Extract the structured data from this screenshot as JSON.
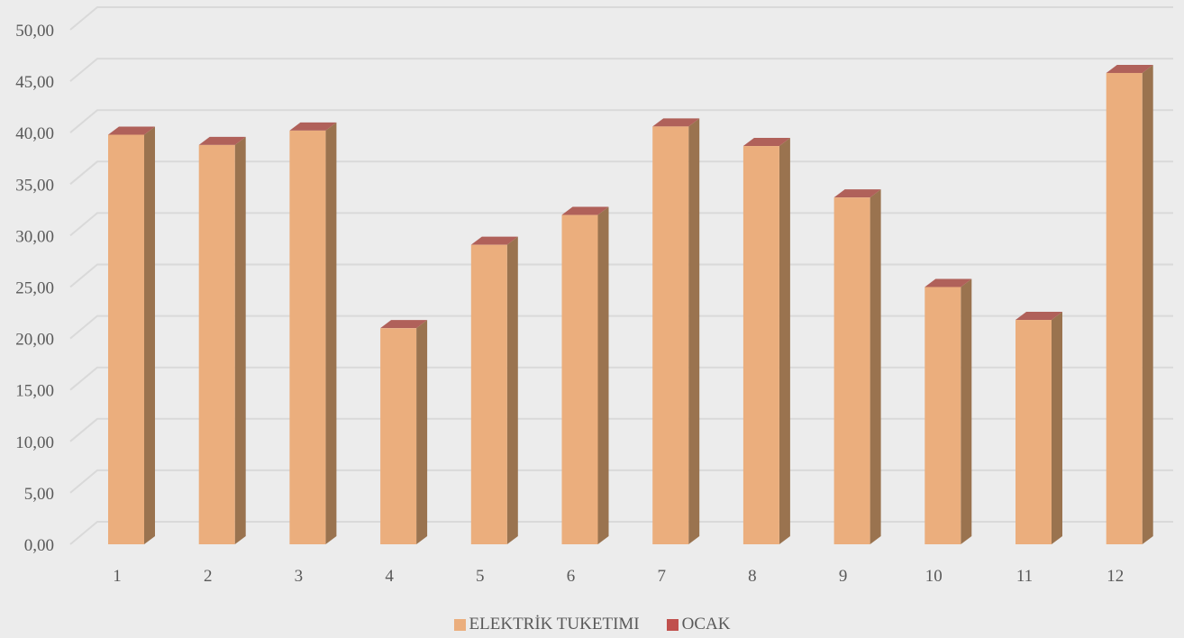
{
  "chart_data": {
    "type": "bar",
    "categories": [
      "1",
      "2",
      "3",
      "4",
      "5",
      "6",
      "7",
      "8",
      "9",
      "10",
      "11",
      "12"
    ],
    "series": [
      {
        "name": "ELEKTRİK TUKETIMI",
        "values": [
          39.8,
          38.8,
          40.2,
          21.0,
          29.1,
          32.0,
          40.6,
          38.7,
          33.7,
          25.0,
          21.8,
          45.8
        ],
        "color": "#ebae7d"
      },
      {
        "name": "OCAK",
        "values": [
          0,
          0,
          0,
          0,
          0,
          0,
          0,
          0,
          0,
          0,
          0,
          0
        ],
        "color": "#c0504d"
      }
    ],
    "y_ticks": [
      "0,00",
      "5,00",
      "10,00",
      "15,00",
      "20,00",
      "25,00",
      "30,00",
      "35,00",
      "40,00",
      "45,00",
      "50,00"
    ],
    "ylim": [
      0,
      50
    ],
    "grid": true,
    "legend_position": "bottom",
    "colors": {
      "bar_side": "#9a734f",
      "bar_top": "#b0615a",
      "grid": "#d9d9d9",
      "text": "#595959"
    }
  }
}
